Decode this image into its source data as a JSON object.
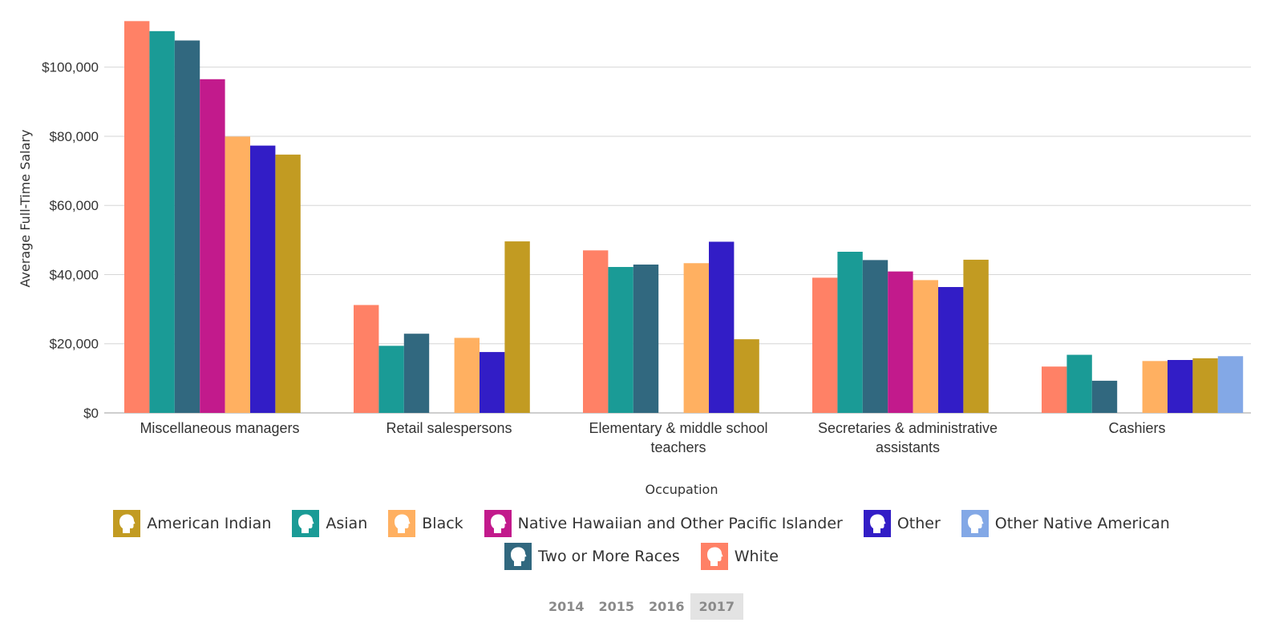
{
  "chart_data": {
    "type": "bar",
    "title": "",
    "xlabel": "Occupation",
    "ylabel": "Average Full-Time Salary",
    "ylim": [
      0,
      115000
    ],
    "yticks": [
      0,
      20000,
      40000,
      60000,
      80000,
      100000
    ],
    "ytick_labels": [
      "$0",
      "$20,000",
      "$40,000",
      "$60,000",
      "$80,000",
      "$100,000"
    ],
    "grid": true,
    "legend_position": "bottom",
    "categories": [
      [
        "Miscellaneous managers"
      ],
      [
        "Retail salespersons"
      ],
      [
        "Elementary & middle school",
        "teachers"
      ],
      [
        "Secretaries & administrative",
        "assistants"
      ],
      [
        "Cashiers"
      ]
    ],
    "series": [
      {
        "name": "White",
        "color": "#FF8166",
        "values": [
          113300,
          31200,
          47000,
          39100,
          13400
        ]
      },
      {
        "name": "Asian",
        "color": "#1A9B96",
        "values": [
          110400,
          19400,
          42200,
          46600,
          16800
        ]
      },
      {
        "name": "Two or More Races",
        "color": "#31687F",
        "values": [
          107700,
          22900,
          42900,
          44200,
          9300
        ]
      },
      {
        "name": "Native Hawaiian and Other Pacific Islander",
        "color": "#C21A8C",
        "values": [
          96500,
          null,
          null,
          40900,
          null
        ]
      },
      {
        "name": "Black",
        "color": "#FFB061",
        "values": [
          79900,
          21700,
          43300,
          38400,
          15000
        ]
      },
      {
        "name": "Other",
        "color": "#321DC6",
        "values": [
          77300,
          17600,
          49500,
          36400,
          15300
        ]
      },
      {
        "name": "American Indian",
        "color": "#C29B22",
        "values": [
          74700,
          49600,
          21300,
          44300,
          15800
        ]
      },
      {
        "name": "Other Native American",
        "color": "#83A8E6",
        "values": [
          null,
          null,
          null,
          null,
          16400
        ]
      }
    ]
  },
  "legend": {
    "row1": [
      {
        "label": "American Indian",
        "color": "#C29B22",
        "icon": "head-icon"
      },
      {
        "label": "Asian",
        "color": "#1A9B96",
        "icon": "head-icon"
      },
      {
        "label": "Black",
        "color": "#FFB061",
        "icon": "head-icon"
      },
      {
        "label": "Native Hawaiian and Other Pacific Islander",
        "color": "#C21A8C",
        "icon": "head-icon"
      },
      {
        "label": "Other",
        "color": "#321DC6",
        "icon": "head-icon"
      },
      {
        "label": "Other Native American",
        "color": "#83A8E6",
        "icon": "head-icon"
      }
    ],
    "row2": [
      {
        "label": "Two or More Races",
        "color": "#31687F",
        "icon": "head-icon"
      },
      {
        "label": "White",
        "color": "#FF8166",
        "icon": "head-icon"
      }
    ]
  },
  "years": {
    "options": [
      "2014",
      "2015",
      "2016",
      "2017"
    ],
    "selected": "2017"
  }
}
